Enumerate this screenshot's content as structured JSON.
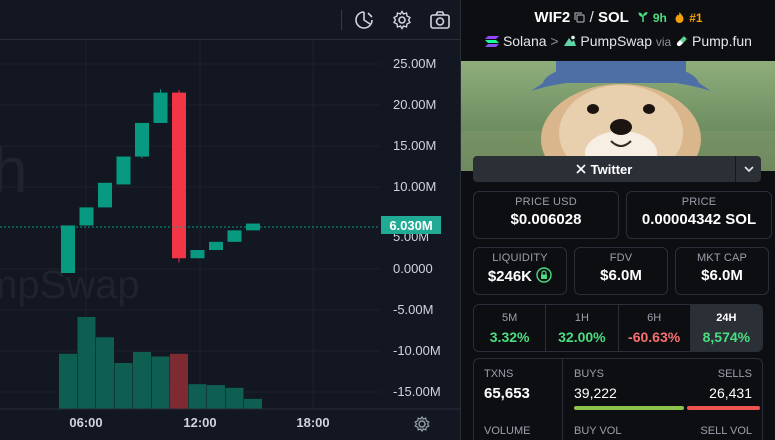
{
  "chart": {
    "price_tag": "6.030M",
    "watermark_left": "h",
    "watermark_bottom": "mpSwap",
    "y_ticks": [
      "25.00M",
      "20.00M",
      "15.00M",
      "10.00M",
      "0.0000",
      "-5.00M",
      "-10.00M",
      "-15.00M"
    ],
    "partial_tick": "5.00M",
    "time_ticks": [
      "06:00",
      "12:00",
      "18:00"
    ]
  },
  "chart_data": {
    "type": "candlestick",
    "unit": "market cap (USD)",
    "ylim": [
      -16000000,
      27000000
    ],
    "candles": [
      {
        "o": 0,
        "h": 5800000,
        "l": 0,
        "c": 5800000,
        "dir": "up"
      },
      {
        "o": 5800000,
        "h": 8000000,
        "l": 5800000,
        "c": 8000000,
        "dir": "up"
      },
      {
        "o": 8000000,
        "h": 11000000,
        "l": 8000000,
        "c": 11000000,
        "dir": "up"
      },
      {
        "o": 10800000,
        "h": 14200000,
        "l": 10800000,
        "c": 14200000,
        "dir": "up"
      },
      {
        "o": 14200000,
        "h": 18300000,
        "l": 14000000,
        "c": 18300000,
        "dir": "up"
      },
      {
        "o": 18300000,
        "h": 22400000,
        "l": 18300000,
        "c": 22000000,
        "dir": "up"
      },
      {
        "o": 22000000,
        "h": 22300000,
        "l": 1300000,
        "c": 1800000,
        "dir": "down"
      },
      {
        "o": 1800000,
        "h": 2800000,
        "l": 1800000,
        "c": 2800000,
        "dir": "up"
      },
      {
        "o": 2800000,
        "h": 3800000,
        "l": 2800000,
        "c": 3800000,
        "dir": "up"
      },
      {
        "o": 3800000,
        "h": 5200000,
        "l": 3800000,
        "c": 5200000,
        "dir": "up"
      },
      {
        "o": 5200000,
        "h": 6030000,
        "l": 5200000,
        "c": 6030000,
        "dir": "up"
      }
    ],
    "volume": [
      {
        "v": 0.6,
        "dir": "up"
      },
      {
        "v": 1.0,
        "dir": "up"
      },
      {
        "v": 0.78,
        "dir": "up"
      },
      {
        "v": 0.5,
        "dir": "up"
      },
      {
        "v": 0.62,
        "dir": "up"
      },
      {
        "v": 0.57,
        "dir": "up"
      },
      {
        "v": 0.6,
        "dir": "down"
      },
      {
        "v": 0.27,
        "dir": "up"
      },
      {
        "v": 0.26,
        "dir": "up"
      },
      {
        "v": 0.23,
        "dir": "up"
      },
      {
        "v": 0.11,
        "dir": "up"
      }
    ],
    "colors": {
      "up": "#089981",
      "down": "#f23645",
      "up_vol": "#0e5f52",
      "down_vol": "#7d2a33"
    }
  },
  "toolbar": {
    "icons": [
      "indicator-icon",
      "gear-icon",
      "camera-icon"
    ]
  },
  "pair": {
    "base": "WIF2",
    "quote": "SOL",
    "age": "9h",
    "rank": "#1",
    "chain": "Solana",
    "dex": "PumpSwap",
    "via": "via",
    "launchpad": "Pump.fun"
  },
  "social": {
    "twitter": "Twitter"
  },
  "stats": {
    "price_usd_label": "PRICE USD",
    "price_usd": "$0.006028",
    "price_label": "PRICE",
    "price_sol": "0.00004342 SOL",
    "liquidity_label": "LIQUIDITY",
    "liquidity": "$246K",
    "fdv_label": "FDV",
    "fdv": "$6.0M",
    "mktcap_label": "MKT CAP",
    "mktcap": "$6.0M"
  },
  "timeframes": [
    {
      "label": "5M",
      "value": "3.32%"
    },
    {
      "label": "1H",
      "value": "32.00%"
    },
    {
      "label": "6H",
      "value": "-60.63%"
    },
    {
      "label": "24H",
      "value": "8,574%"
    }
  ],
  "txns": {
    "txns_label": "TXNS",
    "txns": "65,653",
    "buys_label": "BUYS",
    "buys": "39,222",
    "sells_label": "SELLS",
    "sells": "26,431",
    "buy_ratio": 0.597,
    "volume_label": "VOLUME",
    "buy_vol_label": "BUY VOL",
    "sell_vol_label": "SELL VOL"
  }
}
